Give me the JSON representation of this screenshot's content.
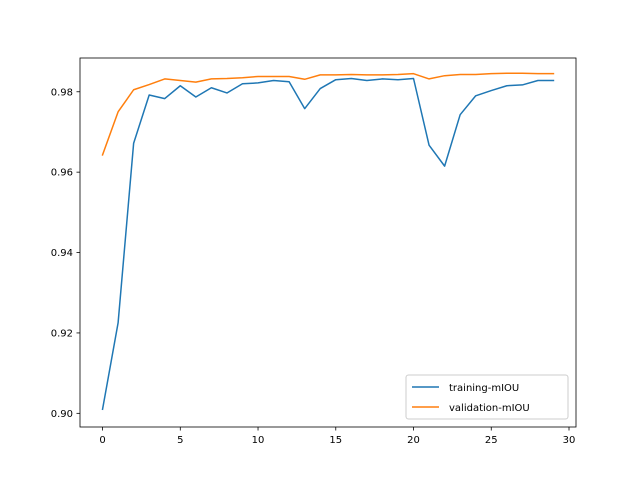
{
  "chart_data": {
    "type": "line",
    "title": "",
    "xlabel": "",
    "ylabel": "",
    "xlim": [
      -1.45,
      30.45
    ],
    "ylim": [
      0.8966,
      0.9884
    ],
    "xticks": [
      0,
      5,
      10,
      15,
      20,
      25,
      30
    ],
    "yticks": [
      0.9,
      0.92,
      0.94,
      0.96,
      0.98
    ],
    "ytick_labels": [
      "0.90",
      "0.92",
      "0.94",
      "0.96",
      "0.98"
    ],
    "grid": false,
    "legend_position": "lower-right",
    "x": [
      0,
      1,
      2,
      3,
      4,
      5,
      6,
      7,
      8,
      9,
      10,
      11,
      12,
      13,
      14,
      15,
      16,
      17,
      18,
      19,
      20,
      21,
      22,
      23,
      24,
      25,
      26,
      27,
      28,
      29
    ],
    "series": [
      {
        "name": "training-mIOU",
        "color": "#1f77b4",
        "values": [
          0.901,
          0.9225,
          0.9672,
          0.9792,
          0.9783,
          0.9815,
          0.9787,
          0.981,
          0.9797,
          0.982,
          0.9822,
          0.9828,
          0.9825,
          0.9758,
          0.9808,
          0.983,
          0.9833,
          0.9828,
          0.9832,
          0.983,
          0.9833,
          0.9667,
          0.9615,
          0.9743,
          0.979,
          0.9803,
          0.9815,
          0.9817,
          0.9828,
          0.9828
        ]
      },
      {
        "name": "validation-mIOU",
        "color": "#ff7f0e",
        "values": [
          0.9643,
          0.975,
          0.9805,
          0.9818,
          0.9832,
          0.9828,
          0.9824,
          0.9832,
          0.9833,
          0.9835,
          0.9838,
          0.9838,
          0.9838,
          0.9831,
          0.9842,
          0.9842,
          0.9843,
          0.9842,
          0.9842,
          0.9843,
          0.9845,
          0.9832,
          0.984,
          0.9843,
          0.9843,
          0.9845,
          0.9846,
          0.9846,
          0.9845,
          0.9845
        ]
      }
    ]
  }
}
